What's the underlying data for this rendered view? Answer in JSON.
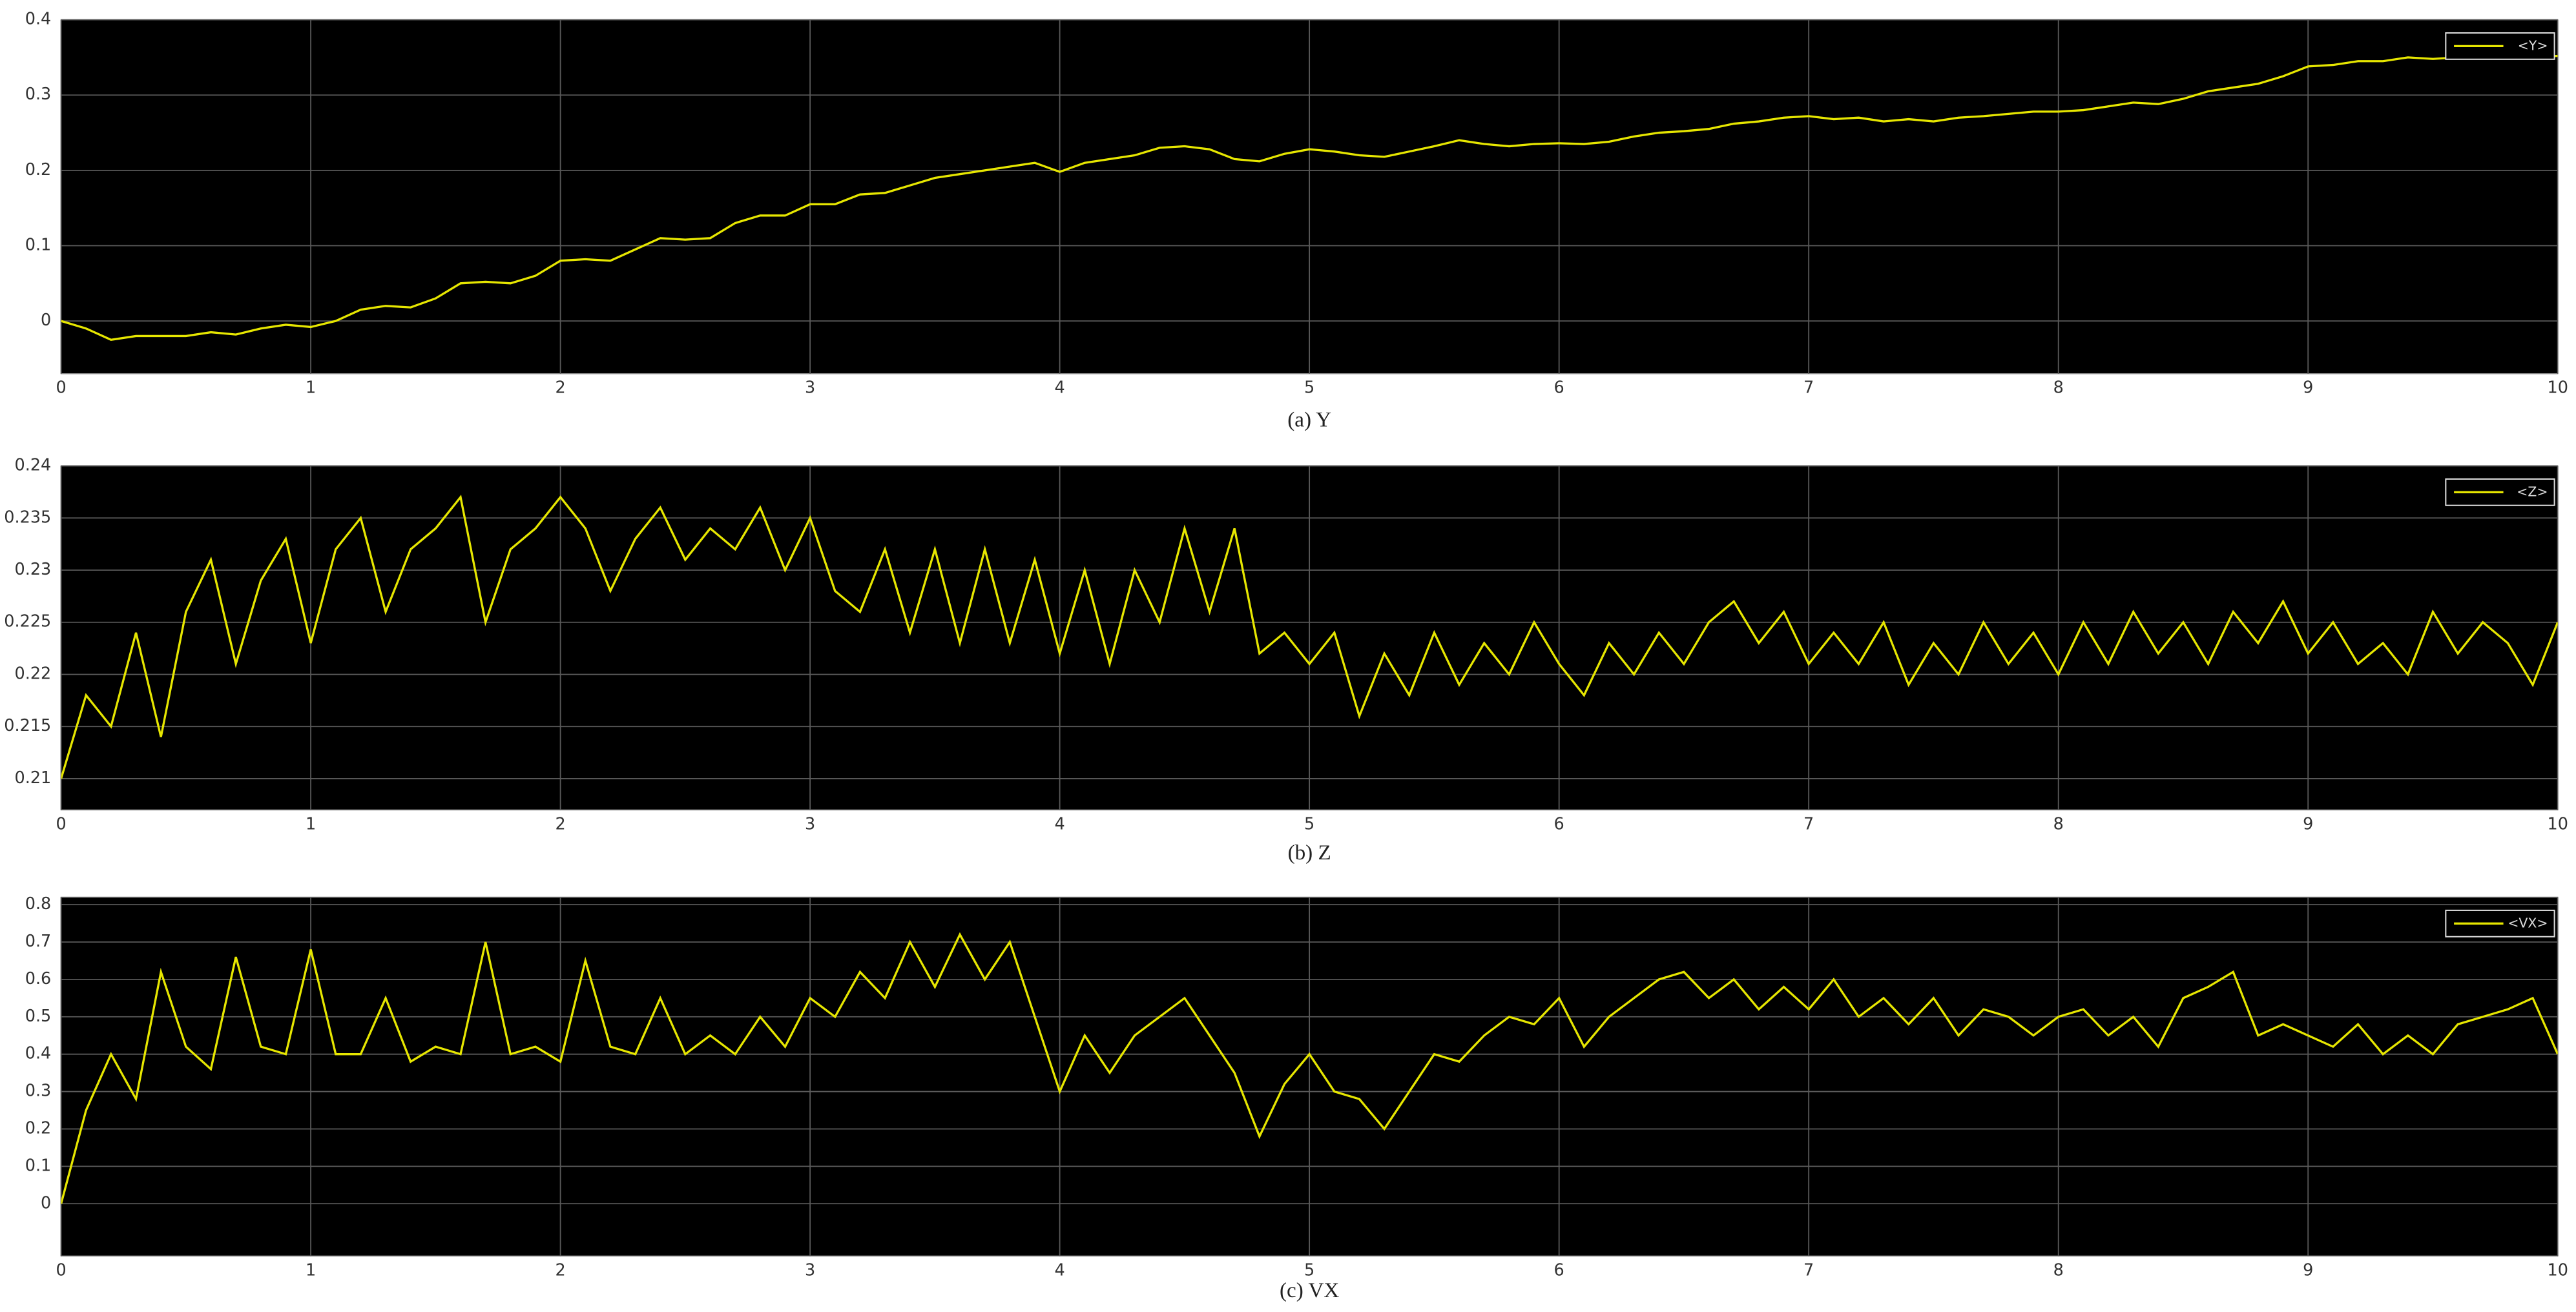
{
  "chart_data": [
    {
      "type": "line",
      "title": "(a) Y",
      "xlim": [
        0,
        10
      ],
      "ylim": [
        -0.07,
        0.4
      ],
      "xticks": [
        0,
        1,
        2,
        3,
        4,
        5,
        6,
        7,
        8,
        9,
        10
      ],
      "yticks": [
        0,
        0.1,
        0.2,
        0.3,
        0.4
      ],
      "grid": true,
      "legend": "upper right",
      "x": [
        0,
        0.1,
        0.2,
        0.3,
        0.4,
        0.5,
        0.6,
        0.7,
        0.8,
        0.9,
        1,
        1.1,
        1.2,
        1.3,
        1.4,
        1.5,
        1.6,
        1.7,
        1.8,
        1.9,
        2,
        2.1,
        2.2,
        2.3,
        2.4,
        2.5,
        2.6,
        2.7,
        2.8,
        2.9,
        3,
        3.1,
        3.2,
        3.3,
        3.4,
        3.5,
        3.6,
        3.7,
        3.8,
        3.9,
        4,
        4.1,
        4.2,
        4.3,
        4.4,
        4.5,
        4.6,
        4.7,
        4.8,
        4.9,
        5,
        5.1,
        5.2,
        5.3,
        5.4,
        5.5,
        5.6,
        5.7,
        5.8,
        5.9,
        6,
        6.1,
        6.2,
        6.3,
        6.4,
        6.5,
        6.6,
        6.7,
        6.8,
        6.9,
        7,
        7.1,
        7.2,
        7.3,
        7.4,
        7.5,
        7.6,
        7.7,
        7.8,
        7.9,
        8,
        8.1,
        8.2,
        8.3,
        8.4,
        8.5,
        8.6,
        8.7,
        8.8,
        8.9,
        9,
        9.1,
        9.2,
        9.3,
        9.4,
        9.5,
        9.6,
        9.7,
        9.8,
        9.9,
        10
      ],
      "series": [
        {
          "name": "<Y>",
          "color": "#e6e600",
          "values": [
            0,
            -0.01,
            -0.025,
            -0.02,
            -0.02,
            -0.02,
            -0.015,
            -0.018,
            -0.01,
            -0.005,
            -0.008,
            0,
            0.015,
            0.02,
            0.018,
            0.03,
            0.05,
            0.052,
            0.05,
            0.06,
            0.08,
            0.082,
            0.08,
            0.095,
            0.11,
            0.108,
            0.11,
            0.13,
            0.14,
            0.14,
            0.155,
            0.155,
            0.168,
            0.17,
            0.18,
            0.19,
            0.195,
            0.2,
            0.205,
            0.21,
            0.198,
            0.21,
            0.215,
            0.22,
            0.23,
            0.232,
            0.228,
            0.215,
            0.212,
            0.222,
            0.228,
            0.225,
            0.22,
            0.218,
            0.225,
            0.232,
            0.24,
            0.235,
            0.232,
            0.235,
            0.236,
            0.235,
            0.238,
            0.245,
            0.25,
            0.252,
            0.255,
            0.262,
            0.265,
            0.27,
            0.272,
            0.268,
            0.27,
            0.265,
            0.268,
            0.265,
            0.27,
            0.272,
            0.275,
            0.278,
            0.278,
            0.28,
            0.285,
            0.29,
            0.288,
            0.295,
            0.305,
            0.31,
            0.315,
            0.325,
            0.338,
            0.34,
            0.345,
            0.345,
            0.35,
            0.348,
            0.35,
            0.352,
            0.352,
            0.35,
            0.352
          ]
        }
      ]
    },
    {
      "type": "line",
      "title": "(b) Z",
      "xlim": [
        0,
        10
      ],
      "ylim": [
        0.207,
        0.24
      ],
      "xticks": [
        0,
        1,
        2,
        3,
        4,
        5,
        6,
        7,
        8,
        9,
        10
      ],
      "yticks": [
        0.21,
        0.215,
        0.22,
        0.225,
        0.23,
        0.235,
        0.24
      ],
      "grid": true,
      "legend": "upper right",
      "x": [
        0,
        0.1,
        0.2,
        0.3,
        0.4,
        0.5,
        0.6,
        0.7,
        0.8,
        0.9,
        1,
        1.1,
        1.2,
        1.3,
        1.4,
        1.5,
        1.6,
        1.7,
        1.8,
        1.9,
        2,
        2.1,
        2.2,
        2.3,
        2.4,
        2.5,
        2.6,
        2.7,
        2.8,
        2.9,
        3,
        3.1,
        3.2,
        3.3,
        3.4,
        3.5,
        3.6,
        3.7,
        3.8,
        3.9,
        4,
        4.1,
        4.2,
        4.3,
        4.4,
        4.5,
        4.6,
        4.7,
        4.8,
        4.9,
        5,
        5.1,
        5.2,
        5.3,
        5.4,
        5.5,
        5.6,
        5.7,
        5.8,
        5.9,
        6,
        6.1,
        6.2,
        6.3,
        6.4,
        6.5,
        6.6,
        6.7,
        6.8,
        6.9,
        7,
        7.1,
        7.2,
        7.3,
        7.4,
        7.5,
        7.6,
        7.7,
        7.8,
        7.9,
        8,
        8.1,
        8.2,
        8.3,
        8.4,
        8.5,
        8.6,
        8.7,
        8.8,
        8.9,
        9,
        9.1,
        9.2,
        9.3,
        9.4,
        9.5,
        9.6,
        9.7,
        9.8,
        9.9,
        10
      ],
      "series": [
        {
          "name": "<Z>",
          "color": "#e6e600",
          "values": [
            0.21,
            0.218,
            0.215,
            0.224,
            0.214,
            0.226,
            0.231,
            0.221,
            0.229,
            0.233,
            0.223,
            0.232,
            0.235,
            0.226,
            0.232,
            0.234,
            0.237,
            0.225,
            0.232,
            0.234,
            0.237,
            0.234,
            0.228,
            0.233,
            0.236,
            0.231,
            0.234,
            0.232,
            0.236,
            0.23,
            0.235,
            0.228,
            0.226,
            0.232,
            0.224,
            0.232,
            0.223,
            0.232,
            0.223,
            0.231,
            0.222,
            0.23,
            0.221,
            0.23,
            0.225,
            0.234,
            0.226,
            0.234,
            0.222,
            0.224,
            0.221,
            0.224,
            0.216,
            0.222,
            0.218,
            0.224,
            0.219,
            0.223,
            0.22,
            0.225,
            0.221,
            0.218,
            0.223,
            0.22,
            0.224,
            0.221,
            0.225,
            0.227,
            0.223,
            0.226,
            0.221,
            0.224,
            0.221,
            0.225,
            0.219,
            0.223,
            0.22,
            0.225,
            0.221,
            0.224,
            0.22,
            0.225,
            0.221,
            0.226,
            0.222,
            0.225,
            0.221,
            0.226,
            0.223,
            0.227,
            0.222,
            0.225,
            0.221,
            0.223,
            0.22,
            0.226,
            0.222,
            0.225,
            0.223,
            0.219,
            0.225
          ]
        }
      ]
    },
    {
      "type": "line",
      "title": "(c) VX",
      "xlim": [
        0,
        10
      ],
      "ylim": [
        -0.14,
        0.82
      ],
      "xticks": [
        0,
        1,
        2,
        3,
        4,
        5,
        6,
        7,
        8,
        9,
        10
      ],
      "yticks": [
        0,
        0.1,
        0.2,
        0.3,
        0.4,
        0.5,
        0.6,
        0.7,
        0.8
      ],
      "grid": true,
      "legend": "upper right",
      "x": [
        0,
        0.1,
        0.2,
        0.3,
        0.4,
        0.5,
        0.6,
        0.7,
        0.8,
        0.9,
        1,
        1.1,
        1.2,
        1.3,
        1.4,
        1.5,
        1.6,
        1.7,
        1.8,
        1.9,
        2,
        2.1,
        2.2,
        2.3,
        2.4,
        2.5,
        2.6,
        2.7,
        2.8,
        2.9,
        3,
        3.1,
        3.2,
        3.3,
        3.4,
        3.5,
        3.6,
        3.7,
        3.8,
        3.9,
        4,
        4.1,
        4.2,
        4.3,
        4.4,
        4.5,
        4.6,
        4.7,
        4.8,
        4.9,
        5,
        5.1,
        5.2,
        5.3,
        5.4,
        5.5,
        5.6,
        5.7,
        5.8,
        5.9,
        6,
        6.1,
        6.2,
        6.3,
        6.4,
        6.5,
        6.6,
        6.7,
        6.8,
        6.9,
        7,
        7.1,
        7.2,
        7.3,
        7.4,
        7.5,
        7.6,
        7.7,
        7.8,
        7.9,
        8,
        8.1,
        8.2,
        8.3,
        8.4,
        8.5,
        8.6,
        8.7,
        8.8,
        8.9,
        9,
        9.1,
        9.2,
        9.3,
        9.4,
        9.5,
        9.6,
        9.7,
        9.8,
        9.9,
        10
      ],
      "series": [
        {
          "name": "<VX>",
          "color": "#e6e600",
          "values": [
            0,
            0.25,
            0.4,
            0.28,
            0.62,
            0.42,
            0.36,
            0.66,
            0.42,
            0.4,
            0.68,
            0.4,
            0.4,
            0.55,
            0.38,
            0.42,
            0.4,
            0.7,
            0.4,
            0.42,
            0.38,
            0.65,
            0.42,
            0.4,
            0.55,
            0.4,
            0.45,
            0.4,
            0.5,
            0.42,
            0.55,
            0.5,
            0.62,
            0.55,
            0.7,
            0.58,
            0.72,
            0.6,
            0.7,
            0.5,
            0.3,
            0.45,
            0.35,
            0.45,
            0.5,
            0.55,
            0.45,
            0.35,
            0.18,
            0.32,
            0.4,
            0.3,
            0.28,
            0.2,
            0.3,
            0.4,
            0.38,
            0.45,
            0.5,
            0.48,
            0.55,
            0.42,
            0.5,
            0.55,
            0.6,
            0.62,
            0.55,
            0.6,
            0.52,
            0.58,
            0.52,
            0.6,
            0.5,
            0.55,
            0.48,
            0.55,
            0.45,
            0.52,
            0.5,
            0.45,
            0.5,
            0.52,
            0.45,
            0.5,
            0.42,
            0.55,
            0.58,
            0.62,
            0.45,
            0.48,
            0.45,
            0.42,
            0.48,
            0.4,
            0.45,
            0.4,
            0.48,
            0.5,
            0.52,
            0.55,
            0.4
          ]
        }
      ]
    }
  ]
}
